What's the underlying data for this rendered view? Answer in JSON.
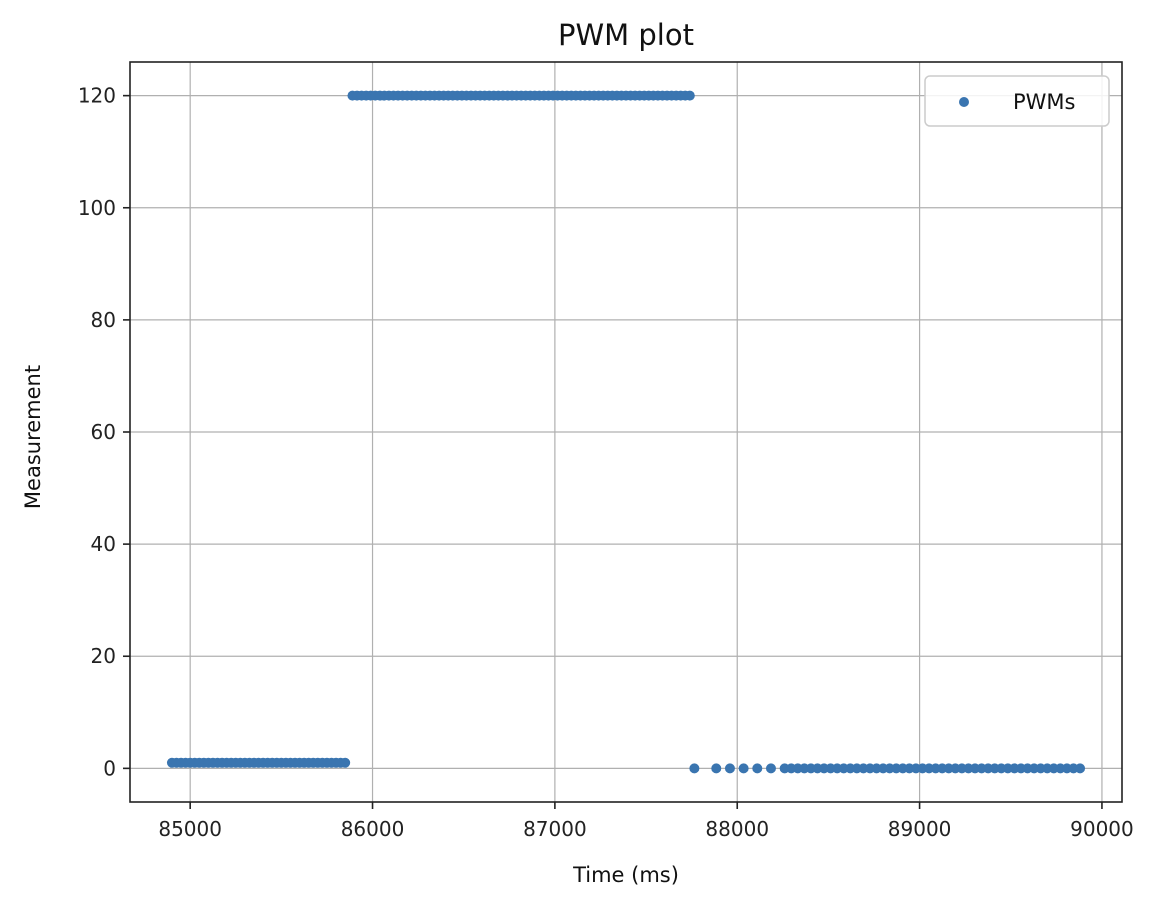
{
  "chart_data": {
    "type": "scatter",
    "title": "PWM plot",
    "xlabel": "Time (ms)",
    "ylabel": "Measurement",
    "xlim": [
      84670,
      90110
    ],
    "ylim": [
      -6,
      126
    ],
    "x_ticks": [
      85000,
      86000,
      87000,
      88000,
      89000,
      90000
    ],
    "y_ticks": [
      0,
      20,
      40,
      60,
      80,
      100,
      120
    ],
    "grid": true,
    "legend_position": "top-right",
    "series": [
      {
        "name": "PWMs",
        "color": "#3a75b0",
        "marker": "circle",
        "segments": [
          {
            "x_start": 84900,
            "x_end": 85870,
            "step": 25,
            "y": 1
          },
          {
            "x_start": 85890,
            "x_end": 87750,
            "step": 25,
            "y": 120
          },
          {
            "x_start": 87765,
            "x_end": 87765,
            "step": 1,
            "y": 0
          },
          {
            "x_start": 87885,
            "x_end": 88185,
            "step": 75,
            "y": 0
          },
          {
            "x_start": 88260,
            "x_end": 89880,
            "step": 36,
            "y": 0
          }
        ]
      }
    ]
  }
}
